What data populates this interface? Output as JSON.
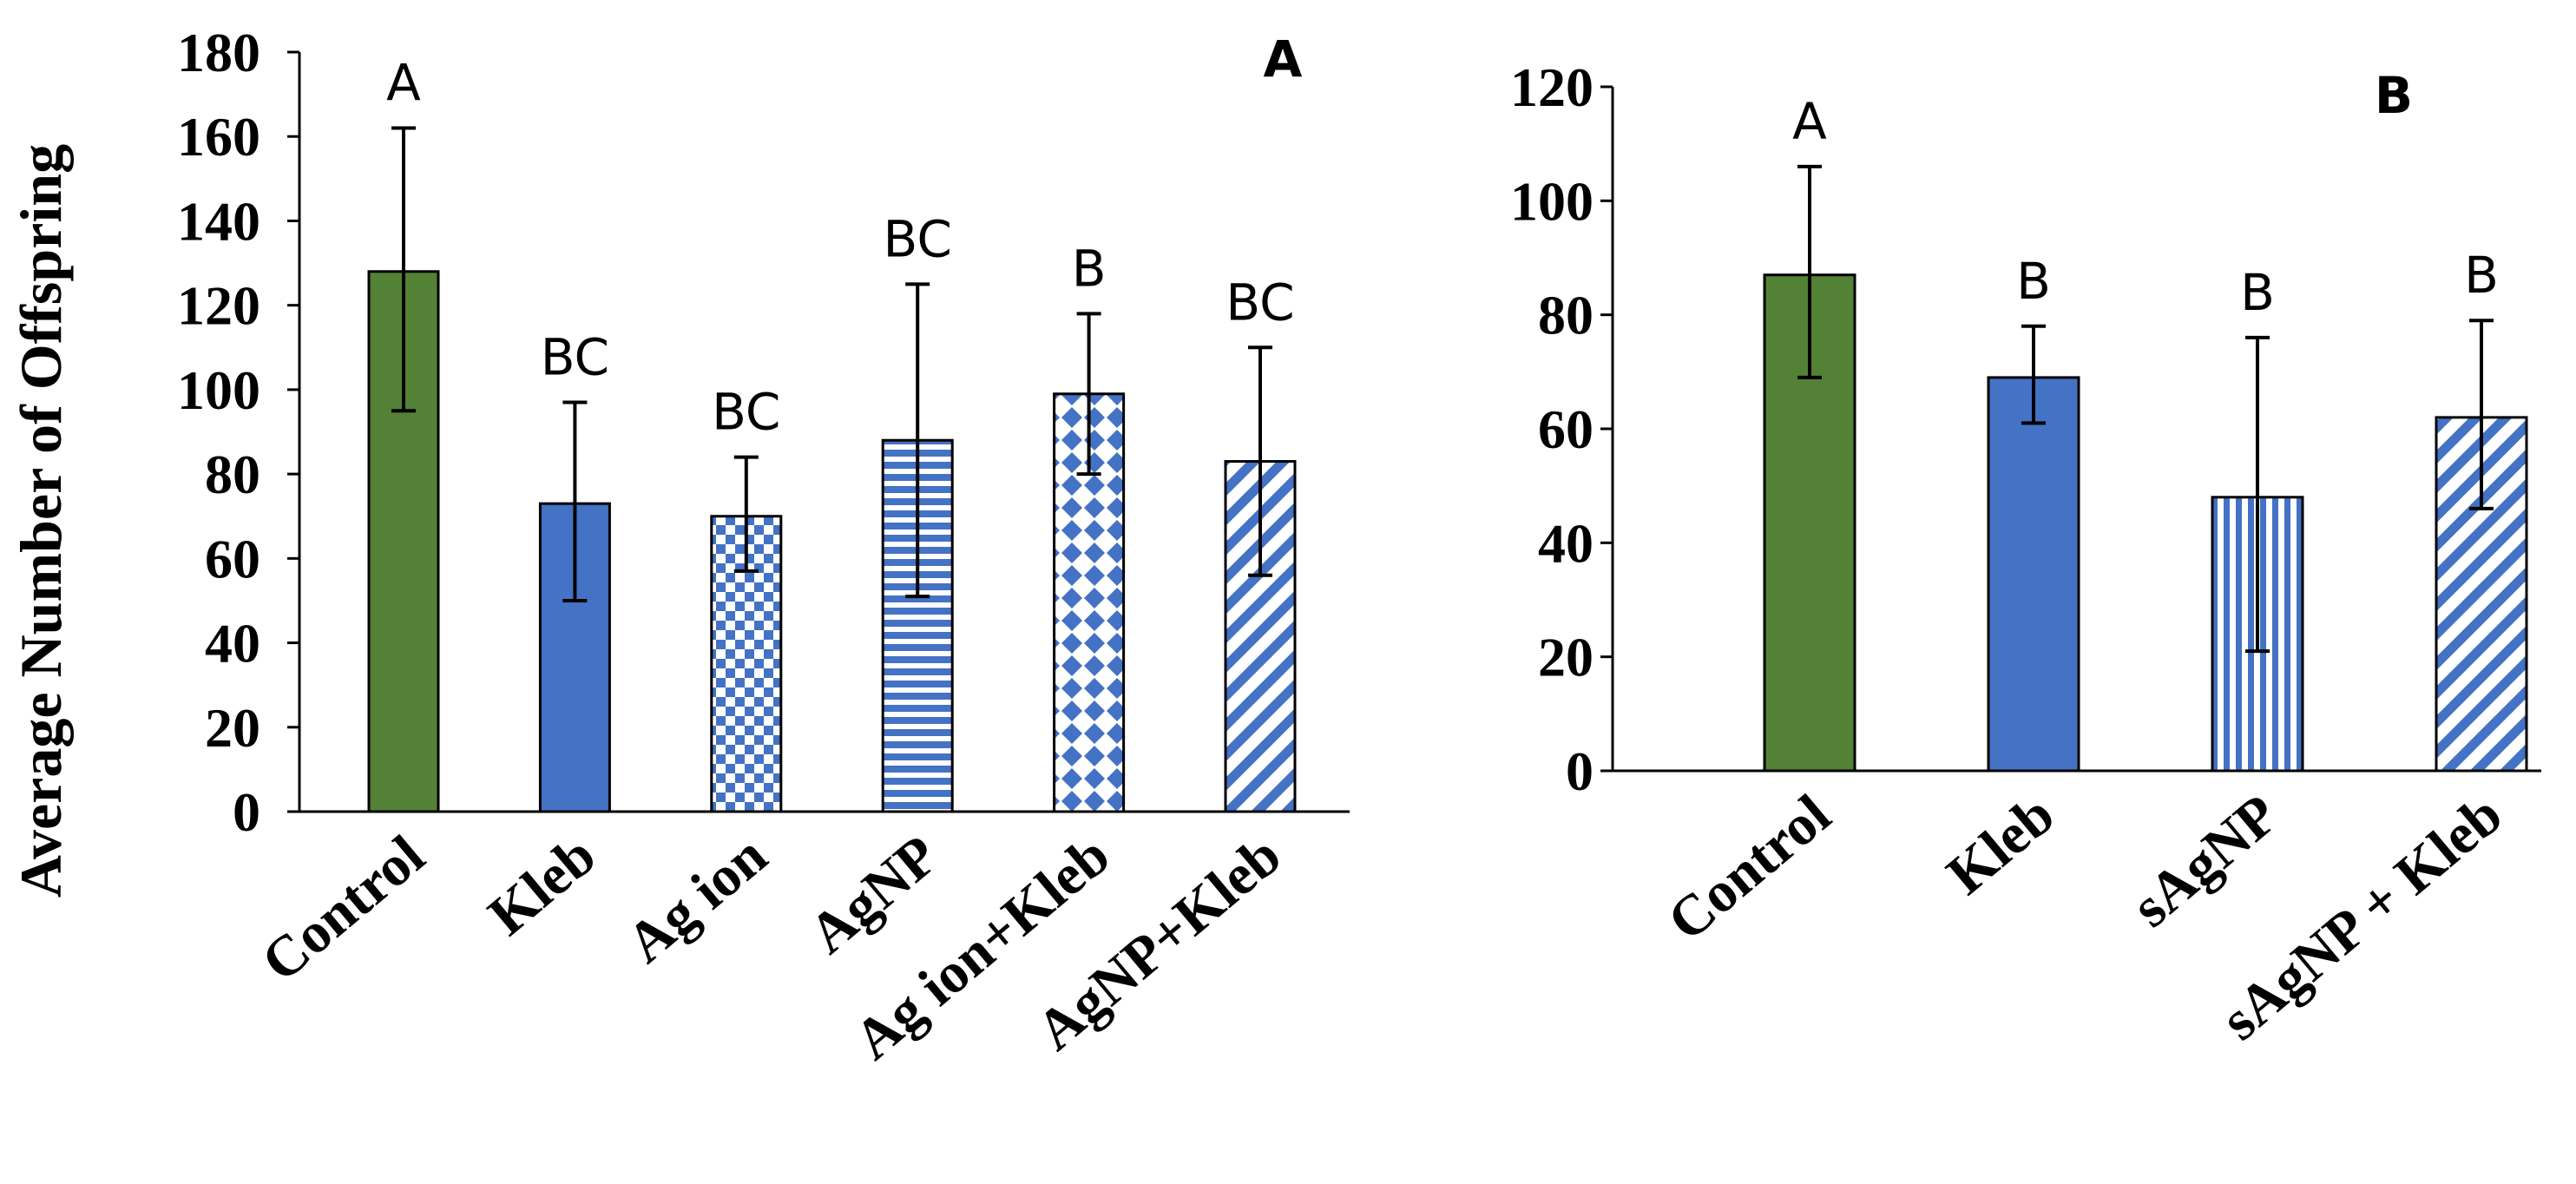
{
  "colors": {
    "green": "#538135",
    "blue": "#4472C4",
    "axis": "#000000"
  },
  "chart_data": [
    {
      "type": "bar",
      "title": "A",
      "ylabel": "Average Number of Offspring",
      "xlabel": "",
      "ylim": [
        0,
        180
      ],
      "yticks": [
        "0",
        "20",
        "40",
        "60",
        "80",
        "100",
        "120",
        "140",
        "160",
        "180"
      ],
      "categories": [
        "Control",
        "Kleb",
        "Ag ion",
        "AgNP",
        "Ag ion+Kleb",
        "AgNP+Kleb"
      ],
      "values": [
        128,
        73,
        70,
        88,
        99,
        83
      ],
      "err_low": [
        95,
        50,
        57,
        51,
        80,
        56
      ],
      "err_high": [
        162,
        97,
        84,
        125,
        118,
        110
      ],
      "significance": [
        "A",
        "BC",
        "BC",
        "BC",
        "B",
        "BC"
      ],
      "patterns": [
        "solid-green",
        "solid-blue",
        "checker",
        "horizontal",
        "dots",
        "diagonal"
      ]
    },
    {
      "type": "bar",
      "title": "B",
      "ylabel": "",
      "xlabel": "",
      "ylim": [
        0,
        120
      ],
      "yticks": [
        "0",
        "20",
        "40",
        "60",
        "80",
        "100",
        "120"
      ],
      "categories": [
        "Control",
        "Kleb",
        "sAgNP",
        "sAgNP + Kleb"
      ],
      "values": [
        87,
        69,
        48,
        62
      ],
      "err_low": [
        69,
        61,
        21,
        46
      ],
      "err_high": [
        106,
        78,
        76,
        79
      ],
      "significance": [
        "A",
        "B",
        "B",
        "B"
      ],
      "patterns": [
        "solid-green",
        "solid-blue",
        "vertical",
        "diagonal"
      ]
    }
  ]
}
